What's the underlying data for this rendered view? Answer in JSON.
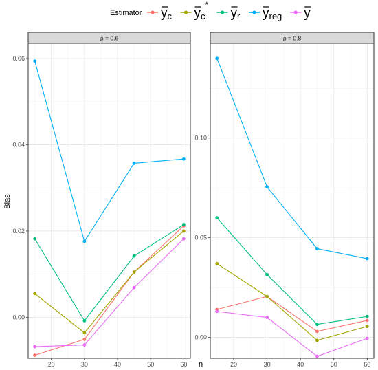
{
  "chart_data": {
    "type": "line",
    "xlabel": "n",
    "ylabel": "Bias",
    "legend": {
      "title": "Estimator",
      "position": "top",
      "entries": [
        {
          "name": "ȳc",
          "base": "y",
          "sub": "c",
          "sup": "",
          "color": "#F8766D"
        },
        {
          "name": "ȳc*",
          "base": "y",
          "sub": "c",
          "sup": "*",
          "color": "#A3A500"
        },
        {
          "name": "ȳr",
          "base": "y",
          "sub": "r",
          "sup": "",
          "color": "#00BF7D"
        },
        {
          "name": "ȳreg",
          "base": "y",
          "sub": "reg",
          "sup": "",
          "color": "#00B0F6"
        },
        {
          "name": "ȳ",
          "base": "y",
          "sub": "",
          "sup": "",
          "color": "#E76BF3"
        }
      ]
    },
    "grid": true,
    "panels": [
      {
        "strip": "ρ = 0.6",
        "x": [
          15,
          30,
          45,
          60
        ],
        "xlim": [
          13,
          62
        ],
        "ylim": [
          -0.0095,
          0.0635
        ],
        "xticks": [
          20,
          30,
          40,
          50,
          60
        ],
        "yticks": [
          0.0,
          0.02,
          0.04,
          0.06
        ],
        "yticklabels": [
          "0.00",
          "0.02",
          "0.04",
          "0.06"
        ],
        "series": [
          {
            "name": "ȳc",
            "values": [
              -0.0088,
              -0.0051,
              0.0105,
              0.0212
            ]
          },
          {
            "name": "ȳc*",
            "values": [
              0.0055,
              -0.0036,
              0.0105,
              0.02
            ]
          },
          {
            "name": "ȳr",
            "values": [
              0.0182,
              -0.0008,
              0.0142,
              0.0215
            ]
          },
          {
            "name": "ȳreg",
            "values": [
              0.0594,
              0.0176,
              0.0357,
              0.0367
            ]
          },
          {
            "name": "ȳ",
            "values": [
              -0.0068,
              -0.0064,
              0.0069,
              0.0182
            ]
          }
        ]
      },
      {
        "strip": "ρ = 0.8",
        "x": [
          15,
          30,
          45,
          60
        ],
        "xlim": [
          13,
          62
        ],
        "ylim": [
          -0.0105,
          0.1475
        ],
        "xticks": [
          20,
          30,
          40,
          50,
          60
        ],
        "yticks": [
          0.0,
          0.05,
          0.1
        ],
        "yticklabels": [
          "0.00",
          "0.05",
          "0.10"
        ],
        "series": [
          {
            "name": "ȳc",
            "values": [
              0.014,
              0.0205,
              0.003,
              0.0085
            ]
          },
          {
            "name": "ȳc*",
            "values": [
              0.037,
              0.0205,
              -0.0015,
              0.0055
            ]
          },
          {
            "name": "ȳr",
            "values": [
              0.06,
              0.0315,
              0.0065,
              0.0105
            ]
          },
          {
            "name": "ȳreg",
            "values": [
              0.14,
              0.0755,
              0.0445,
              0.0395
            ]
          },
          {
            "name": "ȳ",
            "values": [
              0.013,
              0.01,
              -0.0095,
              -0.0005
            ]
          }
        ]
      }
    ]
  }
}
